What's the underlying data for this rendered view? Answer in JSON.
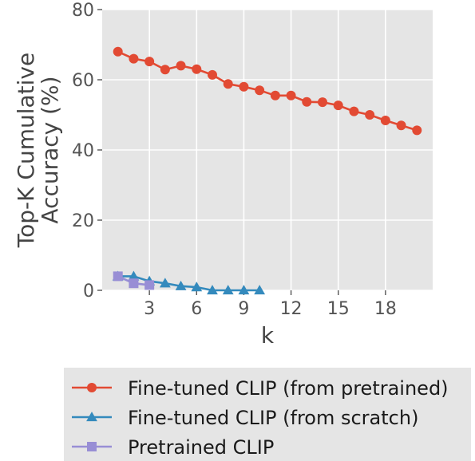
{
  "chart_data": {
    "type": "line",
    "xlabel": "k",
    "ylabel": "Top-K Cumulative\nAccuracy (%)",
    "xlim": [
      0,
      21
    ],
    "ylim": [
      0,
      80
    ],
    "xticks": [
      3,
      6,
      9,
      12,
      15,
      18
    ],
    "yticks": [
      0,
      20,
      40,
      60,
      80
    ],
    "grid": true,
    "legend_position": "bottom",
    "series": [
      {
        "name": "Fine-tuned CLIP (from pretrained)",
        "color": "#E24A33",
        "marker": "circle",
        "x": [
          1,
          2,
          3,
          4,
          5,
          6,
          7,
          8,
          9,
          10,
          11,
          12,
          13,
          14,
          15,
          16,
          17,
          18,
          19,
          20
        ],
        "y": [
          68.0,
          66.0,
          65.2,
          62.9,
          64.0,
          63.0,
          61.4,
          58.8,
          58.0,
          57.0,
          55.5,
          55.5,
          53.7,
          53.6,
          52.7,
          51.0,
          50.0,
          48.4,
          47.0,
          45.6
        ]
      },
      {
        "name": "Fine-tuned CLIP (from scratch)",
        "color": "#348ABD",
        "marker": "triangle",
        "x": [
          1,
          2,
          3,
          4,
          5,
          6,
          7,
          8,
          9,
          10
        ],
        "y": [
          4.0,
          4.0,
          2.6,
          2.0,
          1.2,
          0.9,
          0.0,
          0.0,
          0.0,
          0.0
        ]
      },
      {
        "name": "Pretrained CLIP",
        "color": "#988ED5",
        "marker": "square",
        "x": [
          1,
          2,
          3
        ],
        "y": [
          4.0,
          2.0,
          1.5
        ]
      }
    ]
  }
}
